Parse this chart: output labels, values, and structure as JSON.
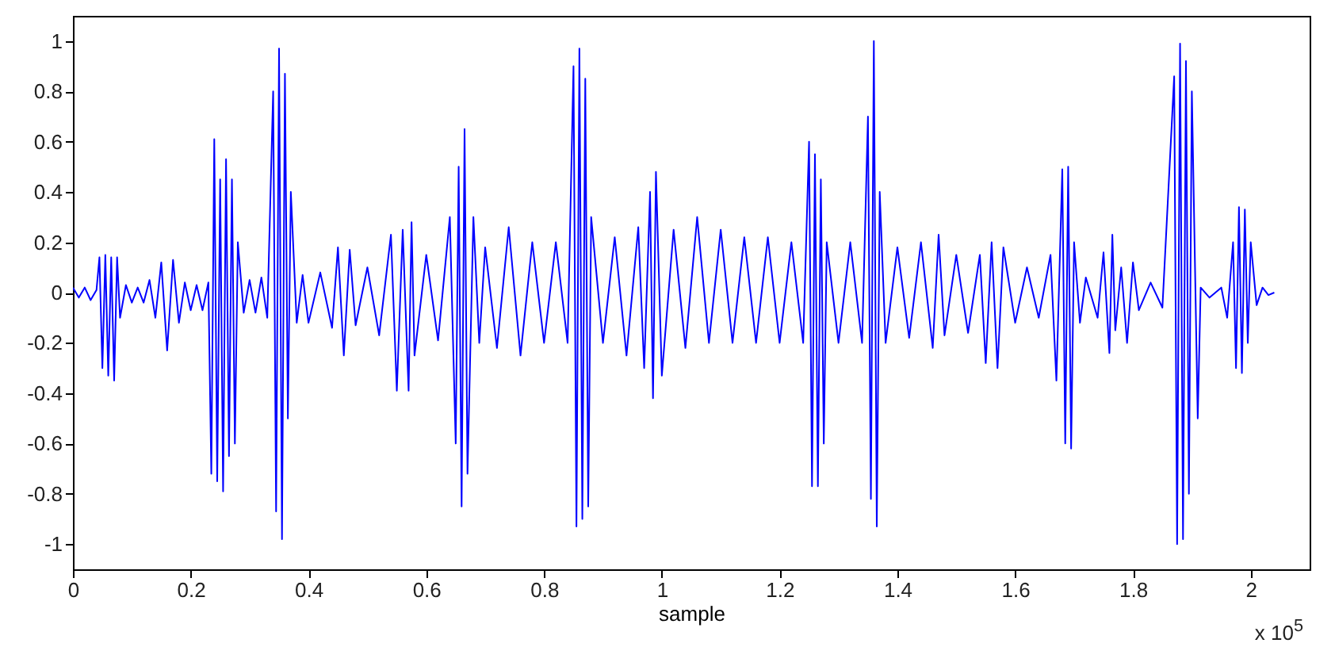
{
  "chart_data": {
    "type": "line",
    "xlabel": "sample",
    "annotations": [
      "x 10$^{5}$"
    ],
    "xlim": [
      0,
      2.1
    ],
    "ylim": [
      -1.1,
      1.1
    ],
    "xticks": [
      0,
      0.2,
      0.4,
      0.6,
      0.8,
      1,
      1.2,
      1.4,
      1.6,
      1.8,
      2
    ],
    "yticks": [
      -1,
      -0.8,
      -0.6,
      -0.4,
      -0.2,
      0,
      0.2,
      0.4,
      0.6,
      0.8,
      1
    ],
    "line_style": "solid",
    "series": [
      {
        "color": "#0000ff",
        "x": [
          0,
          0.01,
          0.02,
          0.03,
          0.04,
          0.045,
          0.05,
          0.055,
          0.06,
          0.065,
          0.07,
          0.075,
          0.08,
          0.09,
          0.1,
          0.11,
          0.12,
          0.13,
          0.14,
          0.15,
          0.16,
          0.17,
          0.18,
          0.19,
          0.2,
          0.21,
          0.22,
          0.23,
          0.235,
          0.24,
          0.245,
          0.25,
          0.255,
          0.26,
          0.265,
          0.27,
          0.275,
          0.28,
          0.29,
          0.3,
          0.31,
          0.32,
          0.33,
          0.34,
          0.345,
          0.35,
          0.355,
          0.36,
          0.365,
          0.37,
          0.38,
          0.39,
          0.4,
          0.42,
          0.44,
          0.45,
          0.46,
          0.47,
          0.48,
          0.5,
          0.52,
          0.54,
          0.55,
          0.56,
          0.57,
          0.575,
          0.58,
          0.6,
          0.62,
          0.64,
          0.65,
          0.655,
          0.66,
          0.665,
          0.67,
          0.68,
          0.69,
          0.7,
          0.72,
          0.74,
          0.76,
          0.78,
          0.8,
          0.82,
          0.84,
          0.85,
          0.855,
          0.86,
          0.865,
          0.87,
          0.875,
          0.88,
          0.9,
          0.92,
          0.94,
          0.96,
          0.97,
          0.98,
          0.985,
          0.99,
          1.0,
          1.02,
          1.04,
          1.06,
          1.08,
          1.1,
          1.12,
          1.14,
          1.16,
          1.18,
          1.2,
          1.22,
          1.24,
          1.25,
          1.255,
          1.26,
          1.265,
          1.27,
          1.275,
          1.28,
          1.3,
          1.32,
          1.34,
          1.35,
          1.355,
          1.36,
          1.365,
          1.37,
          1.38,
          1.4,
          1.42,
          1.44,
          1.46,
          1.47,
          1.48,
          1.5,
          1.52,
          1.54,
          1.55,
          1.56,
          1.57,
          1.58,
          1.6,
          1.62,
          1.64,
          1.66,
          1.67,
          1.68,
          1.685,
          1.69,
          1.695,
          1.7,
          1.71,
          1.72,
          1.74,
          1.75,
          1.76,
          1.765,
          1.77,
          1.78,
          1.79,
          1.8,
          1.81,
          1.83,
          1.85,
          1.87,
          1.875,
          1.88,
          1.885,
          1.89,
          1.895,
          1.9,
          1.91,
          1.915,
          1.93,
          1.95,
          1.96,
          1.97,
          1.975,
          1.98,
          1.985,
          1.99,
          1.995,
          2.0,
          2.01,
          2.02,
          2.03,
          2.04
        ],
        "values": [
          0.02,
          -0.02,
          0.02,
          -0.03,
          0.01,
          0.14,
          -0.3,
          0.15,
          -0.33,
          0.14,
          -0.35,
          0.14,
          -0.1,
          0.03,
          -0.04,
          0.02,
          -0.04,
          0.05,
          -0.1,
          0.12,
          -0.23,
          0.13,
          -0.12,
          0.04,
          -0.07,
          0.03,
          -0.07,
          0.04,
          -0.72,
          0.61,
          -0.75,
          0.45,
          -0.79,
          0.53,
          -0.65,
          0.45,
          -0.6,
          0.2,
          -0.08,
          0.05,
          -0.08,
          0.06,
          -0.1,
          0.8,
          -0.87,
          0.97,
          -0.98,
          0.87,
          -0.5,
          0.4,
          -0.12,
          0.07,
          -0.12,
          0.08,
          -0.14,
          0.18,
          -0.25,
          0.17,
          -0.13,
          0.1,
          -0.17,
          0.23,
          -0.39,
          0.25,
          -0.39,
          0.28,
          -0.25,
          0.15,
          -0.19,
          0.3,
          -0.6,
          0.5,
          -0.85,
          0.65,
          -0.72,
          0.3,
          -0.2,
          0.18,
          -0.22,
          0.26,
          -0.25,
          0.2,
          -0.2,
          0.2,
          -0.2,
          0.9,
          -0.93,
          0.97,
          -0.9,
          0.85,
          -0.85,
          0.3,
          -0.2,
          0.22,
          -0.25,
          0.26,
          -0.3,
          0.4,
          -0.42,
          0.48,
          -0.33,
          0.25,
          -0.22,
          0.3,
          -0.2,
          0.25,
          -0.2,
          0.22,
          -0.2,
          0.22,
          -0.2,
          0.2,
          -0.2,
          0.6,
          -0.77,
          0.55,
          -0.77,
          0.45,
          -0.6,
          0.2,
          -0.2,
          0.2,
          -0.2,
          0.7,
          -0.82,
          1.0,
          -0.93,
          0.4,
          -0.2,
          0.18,
          -0.18,
          0.2,
          -0.22,
          0.23,
          -0.17,
          0.15,
          -0.16,
          0.15,
          -0.28,
          0.2,
          -0.3,
          0.18,
          -0.12,
          0.1,
          -0.1,
          0.15,
          -0.35,
          0.49,
          -0.6,
          0.5,
          -0.62,
          0.2,
          -0.12,
          0.06,
          -0.1,
          0.16,
          -0.24,
          0.23,
          -0.15,
          0.1,
          -0.2,
          0.12,
          -0.07,
          0.04,
          -0.06,
          0.86,
          -1.0,
          0.99,
          -0.98,
          0.92,
          -0.8,
          0.8,
          -0.5,
          0.02,
          -0.02,
          0.02,
          -0.1,
          0.2,
          -0.3,
          0.34,
          -0.32,
          0.33,
          -0.2,
          0.2,
          -0.05,
          0.02,
          -0.01,
          0
        ]
      }
    ]
  }
}
